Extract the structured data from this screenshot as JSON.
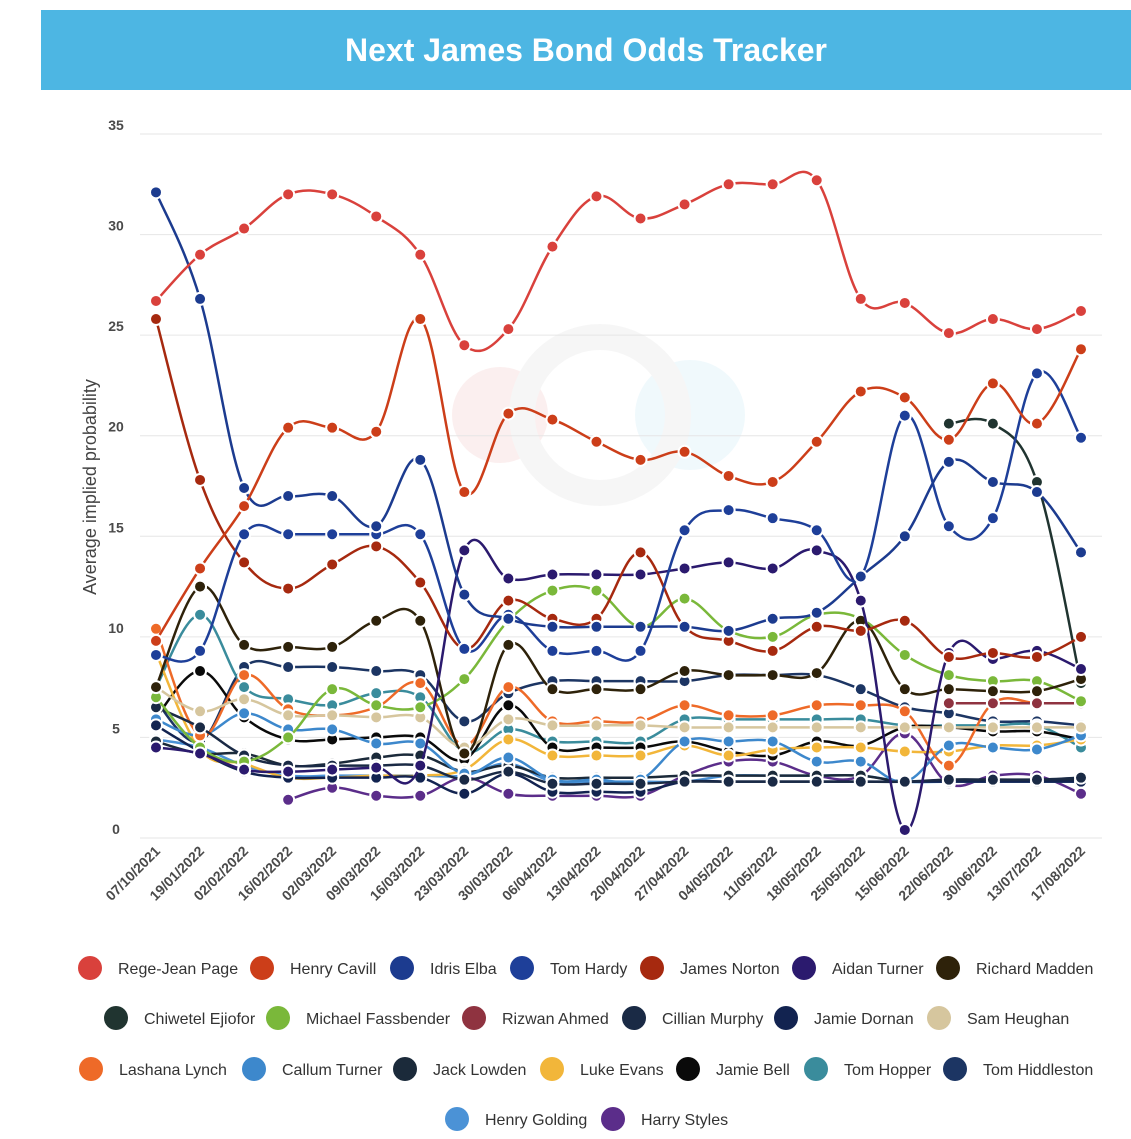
{
  "header": {
    "title": "Next James Bond Odds Tracker"
  },
  "chart_data": {
    "type": "line",
    "title": "Next James Bond Odds Tracker",
    "xlabel": "",
    "ylabel": "Average implied probability",
    "ylim": [
      0,
      35
    ],
    "yticks": [
      0,
      5,
      10,
      15,
      20,
      25,
      30,
      35
    ],
    "grid": true,
    "legend_position": "bottom",
    "categories": [
      "07/10/2021",
      "19/01/2022",
      "02/02/2022",
      "16/02/2022",
      "02/03/2022",
      "09/03/2022",
      "16/03/2022",
      "23/03/2022",
      "30/03/2022",
      "06/04/2022",
      "13/04/2022",
      "20/04/2022",
      "27/04/2022",
      "04/05/2022",
      "11/05/2022",
      "18/05/2022",
      "25/05/2022",
      "15/06/2022",
      "22/06/2022",
      "30/06/2022",
      "13/07/2022",
      "17/08/2022"
    ],
    "series": [
      {
        "name": "Rege-Jean Page",
        "color": "#d9413c",
        "values": [
          26.7,
          29.0,
          30.3,
          32.0,
          32.0,
          30.9,
          29.0,
          24.5,
          25.3,
          29.4,
          31.9,
          30.8,
          31.5,
          32.5,
          32.5,
          32.7,
          26.8,
          26.6,
          25.1,
          25.8,
          25.3,
          26.2
        ]
      },
      {
        "name": "Henry Cavill",
        "color": "#cc3e19",
        "values": [
          9.8,
          13.4,
          16.5,
          20.4,
          20.4,
          20.2,
          25.8,
          17.2,
          21.1,
          20.8,
          19.7,
          18.8,
          19.2,
          18.0,
          17.7,
          19.7,
          22.2,
          21.9,
          19.8,
          22.6,
          20.6,
          24.3
        ]
      },
      {
        "name": "Idris Elba",
        "color": "#1c3b8f",
        "values": [
          32.1,
          26.8,
          17.4,
          17.0,
          17.0,
          15.5,
          18.8,
          12.1,
          10.9,
          10.5,
          10.5,
          10.5,
          10.5,
          10.3,
          10.9,
          11.2,
          13.0,
          15.0,
          18.7,
          17.7,
          17.2,
          14.2
        ]
      },
      {
        "name": "Tom Hardy",
        "color": "#1e3f99",
        "values": [
          9.1,
          9.3,
          15.1,
          15.1,
          15.1,
          15.1,
          15.1,
          9.4,
          11.1,
          9.3,
          9.3,
          9.3,
          15.3,
          16.3,
          15.9,
          15.3,
          13.0,
          21.0,
          15.5,
          15.9,
          23.1,
          19.9
        ]
      },
      {
        "name": "James Norton",
        "color": "#a6290f",
        "values": [
          25.8,
          17.8,
          13.7,
          12.4,
          13.6,
          14.5,
          12.7,
          9.4,
          11.8,
          10.9,
          10.9,
          14.2,
          10.5,
          9.8,
          9.3,
          10.5,
          10.3,
          10.8,
          9.0,
          9.2,
          9.0,
          10.0
        ]
      },
      {
        "name": "Aidan Turner",
        "color": "#2b1a6e",
        "values": [
          4.5,
          4.2,
          3.4,
          3.3,
          3.4,
          3.5,
          3.6,
          14.3,
          12.9,
          13.1,
          13.1,
          13.1,
          13.4,
          13.7,
          13.4,
          14.3,
          11.8,
          0.4,
          9.2,
          8.9,
          9.3,
          8.4
        ]
      },
      {
        "name": "Richard Madden",
        "color": "#2e220a",
        "values": [
          7.5,
          12.5,
          9.6,
          9.5,
          9.5,
          10.8,
          10.8,
          4.2,
          9.6,
          7.4,
          7.4,
          7.4,
          8.3,
          8.1,
          8.1,
          8.2,
          10.8,
          7.4,
          7.4,
          7.3,
          7.3,
          7.9
        ]
      },
      {
        "name": "Chiwetel Ejiofor",
        "color": "#203430",
        "values": [
          null,
          null,
          null,
          null,
          null,
          null,
          null,
          null,
          null,
          null,
          null,
          null,
          null,
          null,
          null,
          null,
          null,
          null,
          20.6,
          20.6,
          17.7,
          7.7
        ]
      },
      {
        "name": "Michael Fassbender",
        "color": "#7ab83a",
        "values": [
          7.0,
          4.5,
          3.8,
          5.0,
          7.4,
          6.6,
          6.5,
          7.9,
          10.8,
          12.3,
          12.3,
          10.5,
          11.9,
          10.3,
          10.0,
          11.1,
          10.9,
          9.1,
          8.1,
          7.8,
          7.8,
          6.8
        ]
      },
      {
        "name": "Rizwan Ahmed",
        "color": "#8f3340",
        "values": [
          null,
          null,
          null,
          null,
          null,
          null,
          null,
          null,
          null,
          null,
          null,
          null,
          null,
          null,
          null,
          null,
          null,
          null,
          6.7,
          6.7,
          6.7,
          6.7
        ]
      },
      {
        "name": "Cillian Murphy",
        "color": "#1a2a45",
        "values": [
          6.5,
          5.5,
          4.1,
          3.6,
          3.6,
          3.6,
          3.6,
          2.9,
          3.3,
          2.7,
          2.7,
          2.7,
          2.8,
          2.8,
          2.8,
          2.8,
          2.8,
          2.8,
          2.9,
          2.9,
          2.9,
          3.0
        ]
      },
      {
        "name": "Jamie Dornan",
        "color": "#122350",
        "values": [
          5.6,
          4.3,
          3.3,
          3.0,
          3.0,
          3.0,
          3.0,
          2.2,
          3.2,
          2.3,
          2.3,
          2.3,
          2.8,
          2.8,
          2.8,
          2.8,
          2.8,
          2.8,
          2.8,
          2.8,
          2.8,
          2.8
        ]
      },
      {
        "name": "Sam Heughan",
        "color": "#d6c69e",
        "values": [
          7.5,
          6.3,
          6.9,
          6.1,
          6.1,
          6.0,
          6.0,
          4.5,
          5.9,
          5.6,
          5.6,
          5.6,
          5.5,
          5.5,
          5.5,
          5.5,
          5.5,
          5.5,
          5.5,
          5.5,
          5.5,
          5.5
        ]
      },
      {
        "name": "Lashana Lynch",
        "color": "#ee6a28",
        "values": [
          10.4,
          5.1,
          8.1,
          6.4,
          6.1,
          6.5,
          7.7,
          4.6,
          7.5,
          5.8,
          5.8,
          5.8,
          6.6,
          6.1,
          6.1,
          6.6,
          6.6,
          6.3,
          3.6,
          6.7,
          6.7,
          6.7
        ]
      },
      {
        "name": "Callum Turner",
        "color": "#3d88cc",
        "values": [
          5.9,
          5.1,
          6.2,
          5.4,
          5.4,
          4.7,
          4.7,
          3.2,
          4.0,
          2.9,
          2.9,
          2.9,
          4.8,
          4.8,
          4.8,
          3.8,
          3.8,
          2.8,
          4.6,
          4.5,
          4.4,
          5.1
        ]
      },
      {
        "name": "Jack Lowden",
        "color": "#1b2a3a",
        "values": [
          4.8,
          4.2,
          4.2,
          3.6,
          3.7,
          4.0,
          4.1,
          3.3,
          3.6,
          3.0,
          3.0,
          3.0,
          3.1,
          3.1,
          3.1,
          3.1,
          3.1,
          2.8,
          2.9,
          2.9,
          2.9,
          2.9
        ]
      },
      {
        "name": "Luke Evans",
        "color": "#f2b63a",
        "values": [
          9.2,
          4.4,
          3.7,
          3.0,
          3.0,
          3.1,
          3.1,
          3.4,
          4.9,
          4.1,
          4.1,
          4.1,
          4.6,
          4.1,
          4.4,
          4.5,
          4.5,
          4.3,
          4.3,
          4.6,
          4.6,
          4.9
        ]
      },
      {
        "name": "Jamie Bell",
        "color": "#0a0a0a",
        "values": [
          6.0,
          8.3,
          6.0,
          4.9,
          4.9,
          5.0,
          5.0,
          3.9,
          6.6,
          4.5,
          4.5,
          4.5,
          4.8,
          4.3,
          4.1,
          4.8,
          4.6,
          5.5,
          5.5,
          5.3,
          5.3,
          4.9
        ]
      },
      {
        "name": "Tom Hopper",
        "color": "#3a8c9c",
        "values": [
          7.5,
          11.1,
          7.5,
          6.9,
          6.6,
          7.2,
          7.0,
          4.3,
          5.4,
          4.8,
          4.8,
          4.8,
          5.9,
          5.9,
          5.9,
          5.9,
          5.9,
          5.6,
          5.6,
          5.6,
          5.6,
          4.5
        ]
      },
      {
        "name": "Tom Hiddleston",
        "color": "#1c3563",
        "values": [
          6.8,
          4.8,
          8.5,
          8.5,
          8.5,
          8.3,
          8.1,
          5.8,
          7.2,
          7.8,
          7.8,
          7.8,
          7.8,
          8.1,
          8.1,
          8.1,
          7.4,
          6.5,
          6.2,
          5.8,
          5.8,
          5.6
        ]
      },
      {
        "name": "Henry Golding",
        "color": "#4b92d6",
        "values": [
          4.9,
          4.5,
          3.6,
          3.1,
          3.1,
          3.1,
          3.1,
          3.1,
          3.7,
          2.8,
          2.8,
          2.8,
          2.8,
          3.1,
          3.1,
          3.1,
          3.1,
          2.8,
          2.8,
          2.8,
          2.8,
          2.8
        ]
      },
      {
        "name": "Harry Styles",
        "color": "#5b2d8a",
        "values": [
          null,
          null,
          null,
          1.9,
          2.5,
          2.1,
          2.1,
          3.0,
          2.2,
          2.1,
          2.1,
          2.1,
          3.1,
          3.8,
          3.8,
          3.1,
          3.1,
          5.2,
          2.7,
          3.1,
          3.1,
          2.2
        ]
      }
    ]
  }
}
